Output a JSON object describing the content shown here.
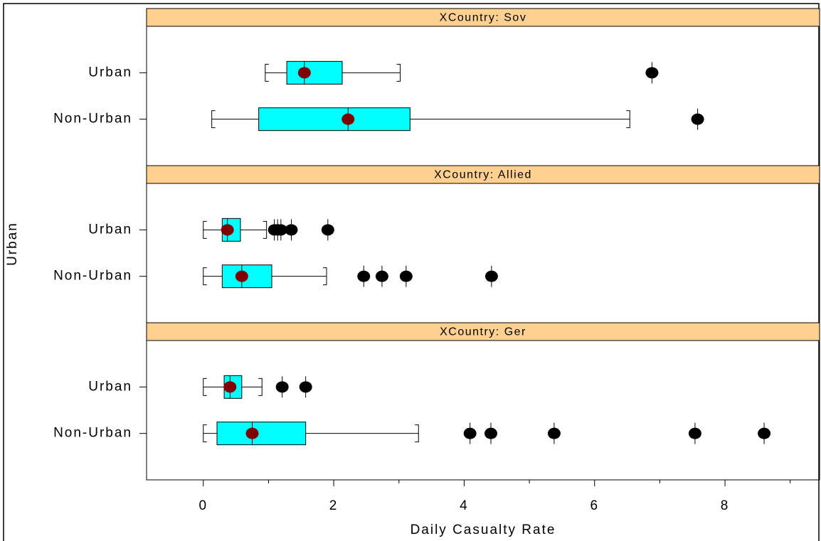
{
  "chart_data": {
    "type": "box",
    "x_label": "Daily Casualty Rate",
    "y_label": "Urban",
    "xlim": [
      -0.87,
      9.45
    ],
    "xticks": [
      0,
      2,
      4,
      6,
      8
    ],
    "xminorticks": [
      1,
      3,
      5,
      7,
      9
    ],
    "box_color": "#00ffff",
    "mean_color": "#800000",
    "flier_color": "#000000",
    "strip_color": "#ffd08f",
    "panels": [
      {
        "title": "XCountry: Sov",
        "categories": [
          "Urban",
          "Non-Urban"
        ],
        "boxes": [
          {
            "whislo": 0.95,
            "q1": 1.28,
            "med": 1.55,
            "q3": 2.13,
            "whishi": 3.02,
            "mean": 1.55,
            "fliers": [
              6.88
            ]
          },
          {
            "whislo": 0.13,
            "q1": 0.85,
            "med": 2.22,
            "q3": 3.17,
            "whishi": 6.54,
            "mean": 2.22,
            "fliers": [
              7.58
            ]
          }
        ]
      },
      {
        "title": "XCountry: Allied",
        "categories": [
          "Urban",
          "Non-Urban"
        ],
        "boxes": [
          {
            "whislo": 0,
            "q1": 0.29,
            "med": 0.37,
            "q3": 0.57,
            "whishi": 0.97,
            "mean": 0.37,
            "fliers": [
              1.09,
              1.14,
              1.19,
              1.35,
              1.91
            ]
          },
          {
            "whislo": 0,
            "q1": 0.29,
            "med": 0.59,
            "q3": 1.05,
            "whishi": 1.89,
            "mean": 0.59,
            "fliers": [
              2.46,
              2.74,
              3.11,
              4.42
            ]
          }
        ]
      },
      {
        "title": "XCountry: Ger",
        "categories": [
          "Urban",
          "Non-Urban"
        ],
        "boxes": [
          {
            "whislo": 0,
            "q1": 0.32,
            "med": 0.41,
            "q3": 0.59,
            "whishi": 0.9,
            "mean": 0.41,
            "fliers": [
              1.21,
              1.57
            ]
          },
          {
            "whislo": 0,
            "q1": 0.21,
            "med": 0.75,
            "q3": 1.57,
            "whishi": 3.3,
            "mean": 0.75,
            "fliers": [
              4.09,
              4.41,
              5.38,
              7.54,
              8.6
            ]
          }
        ]
      }
    ]
  }
}
